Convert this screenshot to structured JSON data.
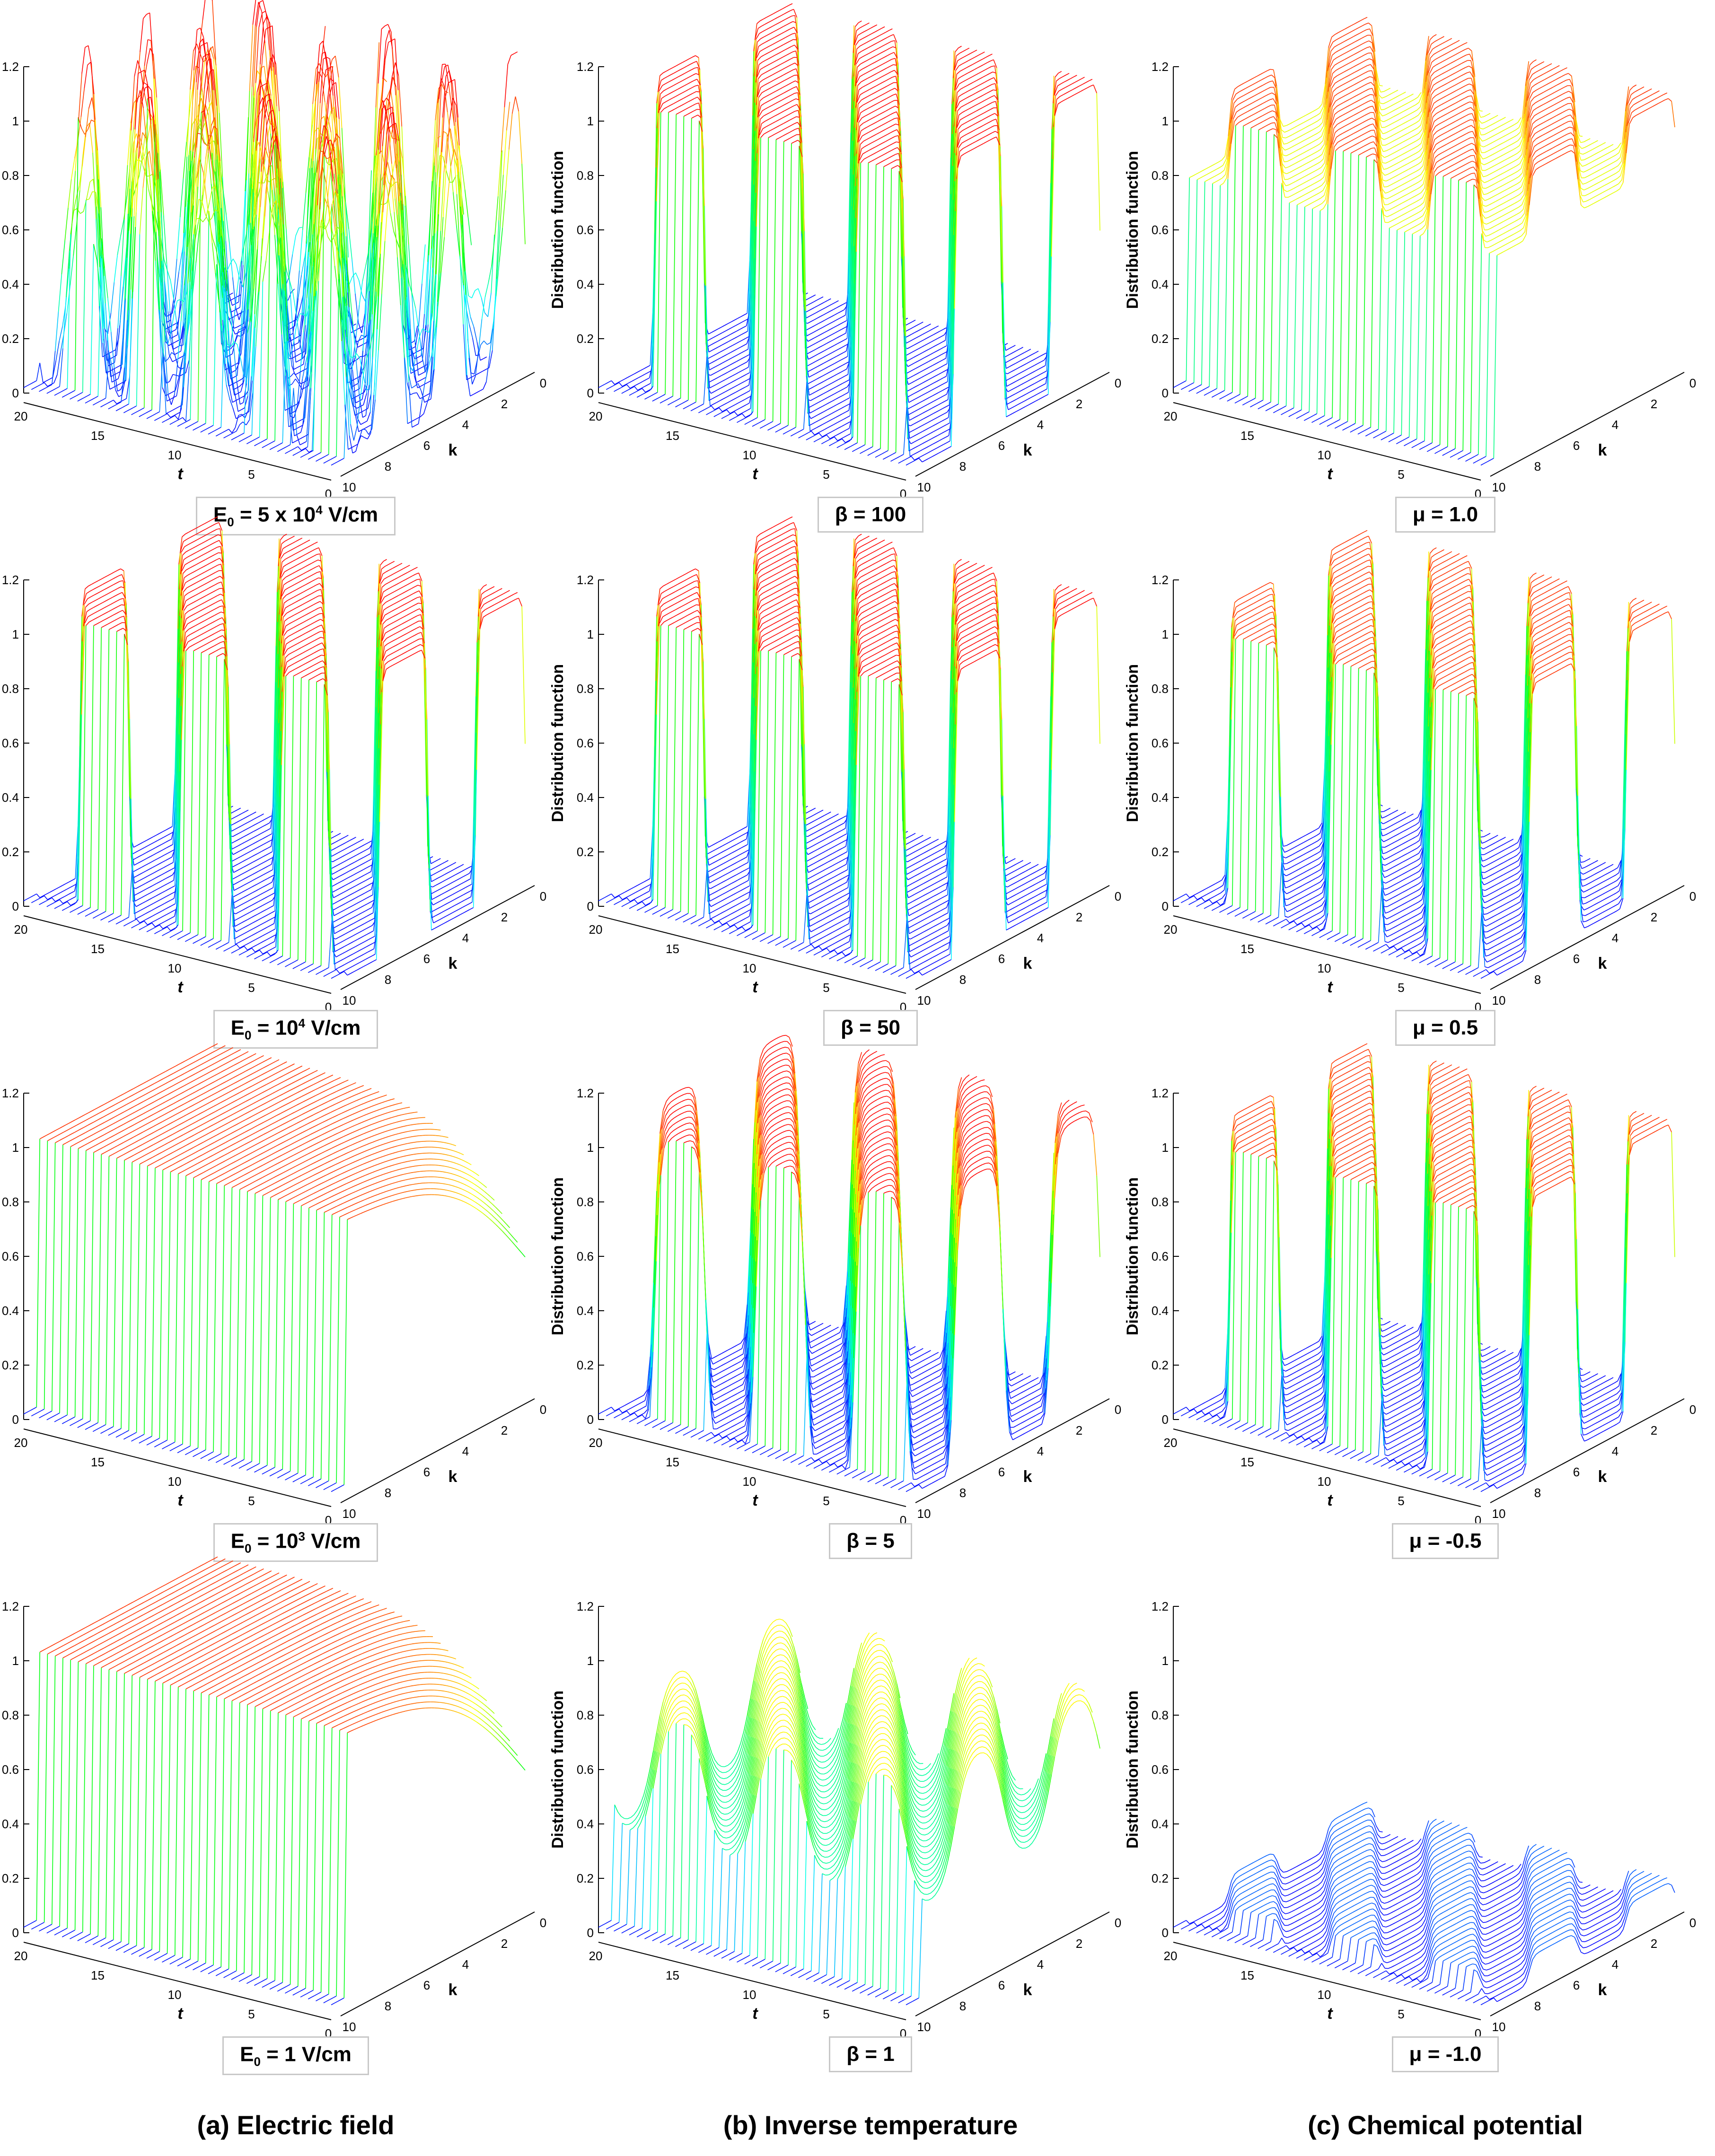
{
  "column_captions": [
    "(a) Electric field",
    "(b) Inverse temperature",
    "(c) Chemical potential"
  ],
  "panel_labels": [
    [
      {
        "prefix": "E",
        "sub": "0",
        "mid": " = 5 x 10",
        "sup": "4",
        "suffix": " V/cm"
      },
      {
        "text": "β = 100"
      },
      {
        "text": "μ = 1.0"
      }
    ],
    [
      {
        "prefix": "E",
        "sub": "0",
        "mid": " = 10",
        "sup": "4",
        "suffix": " V/cm"
      },
      {
        "text": "β = 50"
      },
      {
        "text": "μ = 0.5"
      }
    ],
    [
      {
        "prefix": "E",
        "sub": "0",
        "mid": " = 10",
        "sup": "3",
        "suffix": " V/cm"
      },
      {
        "text": "β = 5"
      },
      {
        "text": "μ = -0.5"
      }
    ],
    [
      {
        "prefix": "E",
        "sub": "0",
        "mid": " = 1",
        "sup": "",
        "suffix": " V/cm"
      },
      {
        "text": "β = 1"
      },
      {
        "text": "μ = -1.0"
      }
    ]
  ],
  "chart_data": {
    "type": "surface3d",
    "rows": 4,
    "cols": 3,
    "zlabel": "Distribution function",
    "xlabel": "t",
    "ylabel": "k",
    "zticks": [
      "0",
      "0.2",
      "0.4",
      "0.6",
      "0.8",
      "1",
      "1.2"
    ],
    "tticks": [
      "20",
      "15",
      "10",
      "5",
      "0"
    ],
    "kticks": [
      "10",
      "8",
      "6",
      "4",
      "2",
      "0"
    ],
    "zlim": [
      0,
      1.2
    ],
    "tlim": [
      0,
      20
    ],
    "klim": [
      0,
      10
    ],
    "colormap": [
      "#0000ff",
      "#00ffff",
      "#00ff00",
      "#ffff00",
      "#ff0000"
    ],
    "panels": [
      [
        {
          "param": "E0 = 5 x 10^4 V/cm",
          "base": 0.45,
          "amp": 0.5,
          "period": 4,
          "sharp": 1,
          "noise": 0.35
        },
        {
          "param": "β = 100",
          "base": 0.5,
          "amp": 0.55,
          "period": 6.5,
          "sharp": 8,
          "noise": 0.0
        },
        {
          "param": "μ = 1.0",
          "base": 0.88,
          "amp": 0.12,
          "period": 6.5,
          "sharp": 6,
          "noise": 0.0
        }
      ],
      [
        {
          "param": "E0 = 10^4 V/cm",
          "base": 0.5,
          "amp": 0.55,
          "period": 6.5,
          "sharp": 8,
          "noise": 0.0
        },
        {
          "param": "β = 50",
          "base": 0.5,
          "amp": 0.55,
          "period": 6.5,
          "sharp": 8,
          "noise": 0.0
        },
        {
          "param": "μ = 0.5",
          "base": 0.5,
          "amp": 0.5,
          "period": 6.5,
          "sharp": 8,
          "noise": 0.0
        }
      ],
      [
        {
          "param": "E0 = 10^3 V/cm",
          "base": 0.5,
          "amp": 0.5,
          "period": 1000,
          "sharp": 30,
          "noise": 0.0
        },
        {
          "param": "β = 5",
          "base": 0.5,
          "amp": 0.55,
          "period": 6.5,
          "sharp": 3,
          "noise": 0.0
        },
        {
          "param": "μ = -0.5",
          "base": 0.5,
          "amp": 0.5,
          "period": 6.5,
          "sharp": 8,
          "noise": 0.0
        }
      ],
      [
        {
          "param": "E0 = 1 V/cm",
          "base": 0.5,
          "amp": 0.5,
          "period": 1000,
          "sharp": 30,
          "noise": 0.0
        },
        {
          "param": "β = 1",
          "base": 0.58,
          "amp": 0.22,
          "period": 6.5,
          "sharp": 1,
          "noise": 0.0
        },
        {
          "param": "μ = -1.0",
          "base": 0.05,
          "amp": 0.05,
          "period": 6.5,
          "sharp": 4,
          "noise": 0.0
        }
      ]
    ]
  }
}
